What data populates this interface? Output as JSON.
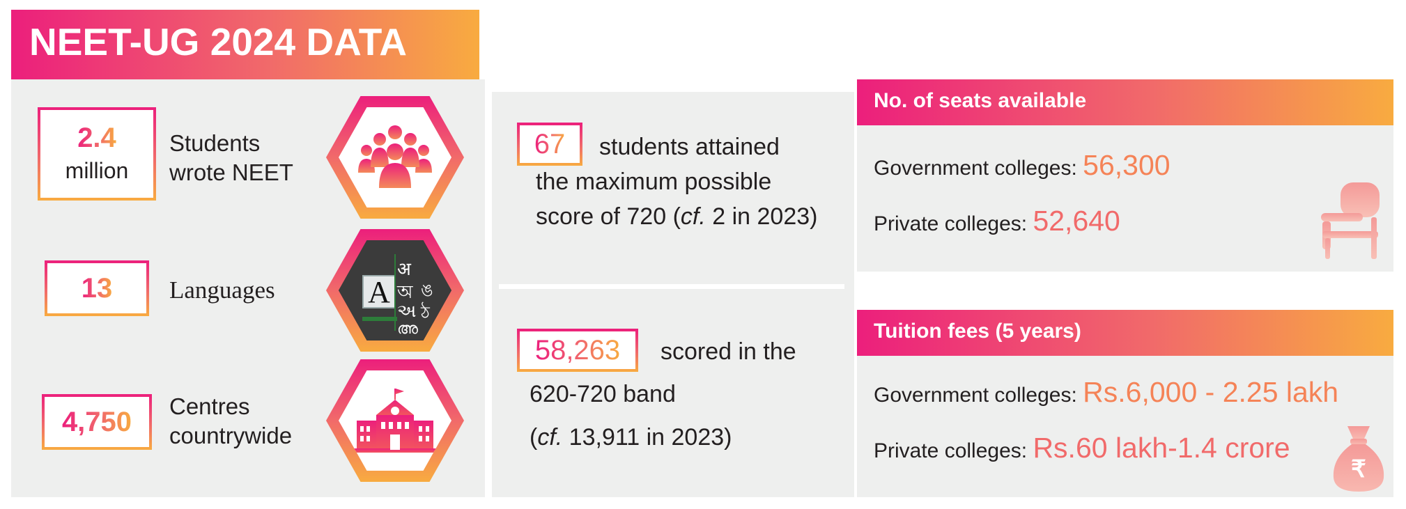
{
  "title": "NEET-UG 2024 DATA",
  "colors": {
    "pink": "#ec1f7c",
    "coral": "#f16a6a",
    "orange": "#f8ab40",
    "panel": "#eeefee"
  },
  "left_stats": [
    {
      "value_line1": "2.4",
      "value_line2": "million",
      "label_line1": "Students",
      "label_line2": "wrote NEET",
      "icon": "people-group-icon"
    },
    {
      "value": "13",
      "label": "Languages",
      "icon": "languages-keyboard-icon",
      "glyphs": [
        "अ",
        "অ",
        "અ",
        "അ",
        "ঙ",
        "ঠ",
        "A"
      ]
    },
    {
      "value": "4,750",
      "label_line1": "Centres",
      "label_line2": "countrywide",
      "icon": "school-building-icon"
    }
  ],
  "toppers": {
    "value": "67",
    "line1": "students attained",
    "line2": "the maximum possible",
    "line3_pre": "score of 720 (",
    "line3_cf": "cf.",
    "line3_post": " 2 in 2023)"
  },
  "band": {
    "value": "58,263",
    "line1": "scored in the",
    "line2": "620-720 band",
    "line3_pre": "(",
    "line3_cf": "cf.",
    "line3_post": " 13,911 in 2023)"
  },
  "seats": {
    "heading": "No. of seats available",
    "government_label": "Government colleges: ",
    "government_value": "56,300",
    "private_label": "Private colleges: ",
    "private_value": "52,640",
    "icon": "school-desk-chair-icon"
  },
  "fees": {
    "heading": "Tuition fees (5 years)",
    "government_label": "Government colleges: ",
    "government_value": "Rs.6,000 - 2.25 lakh",
    "private_label": "Private colleges: ",
    "private_value": "Rs.60 lakh-1.4 crore",
    "icon": "rupee-money-bag-icon",
    "rupee_symbol": "₹"
  }
}
